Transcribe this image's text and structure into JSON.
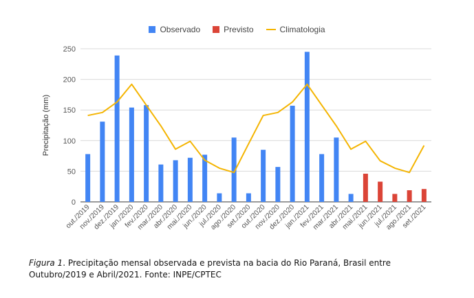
{
  "chart_data": {
    "type": "bar",
    "title": "",
    "xlabel": "",
    "ylabel": "Precipitação (mm)",
    "ylim": [
      0,
      250
    ],
    "yticks": [
      0,
      50,
      100,
      150,
      200,
      250
    ],
    "grid": true,
    "legend_position": "top",
    "categories": [
      "out./2019",
      "nov./2019",
      "dez./2019",
      "jan./2020",
      "fev./2020",
      "mar./2020",
      "abr./2020",
      "mai./2020",
      "jun./2020",
      "jul./2020",
      "ago./2020",
      "set./2020",
      "out./2020",
      "nov./2020",
      "dez./2020",
      "jan./2021",
      "fev./2021",
      "mar./2021",
      "abr./2021",
      "mai./2021",
      "jun./2021",
      "jul./2021",
      "ago./2021",
      "set./2021"
    ],
    "series": [
      {
        "name": "Observado",
        "kind": "bar",
        "color": "#4285f4",
        "values": [
          78,
          131,
          239,
          154,
          158,
          61,
          68,
          72,
          77,
          14,
          105,
          14,
          85,
          57,
          157,
          245,
          78,
          105,
          13,
          null,
          null,
          null,
          null,
          null
        ]
      },
      {
        "name": "Previsto",
        "kind": "bar",
        "color": "#db4437",
        "values": [
          null,
          null,
          null,
          null,
          null,
          null,
          null,
          null,
          null,
          null,
          null,
          null,
          null,
          null,
          null,
          null,
          null,
          null,
          null,
          46,
          33,
          13,
          19,
          21
        ]
      },
      {
        "name": "Climatologia",
        "kind": "line",
        "color": "#f4b400",
        "values": [
          141,
          146,
          163,
          192,
          158,
          124,
          86,
          99,
          68,
          55,
          48,
          95,
          141,
          146,
          163,
          192,
          158,
          124,
          86,
          99,
          67,
          55,
          48,
          92
        ]
      }
    ]
  },
  "caption": {
    "figure_label": "Figura 1",
    "text": ". Precipitação mensal observada e prevista na bacia do Rio Paraná, Brasil entre Outubro/2019 e Abril/2021. Fonte: INPE/CPTEC"
  }
}
